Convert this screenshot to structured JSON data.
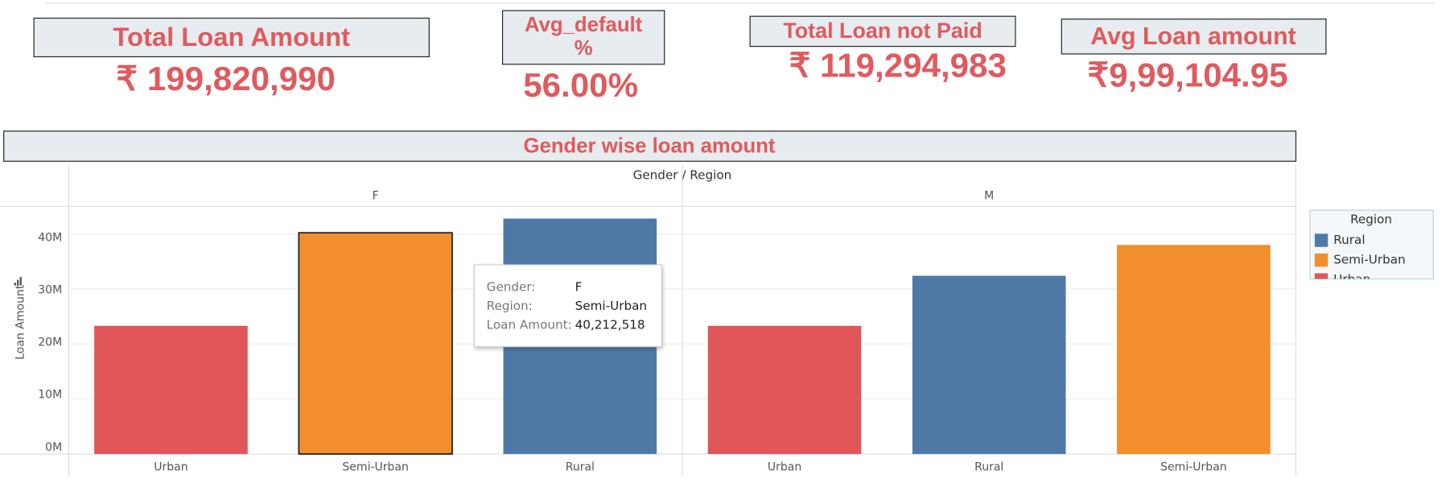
{
  "kpis": [
    {
      "title": "Total Loan Amount",
      "value": "₹ 199,820,990"
    },
    {
      "title": "Avg_default %",
      "value": "56.00%"
    },
    {
      "title": "Total  Loan not Paid",
      "value": "₹ 119,294,983"
    },
    {
      "title": "Avg Loan amount",
      "value": "₹9,99,104.95"
    }
  ],
  "chart_data": {
    "type": "bar",
    "title": "Gender wise loan amount",
    "header": "Gender / Region",
    "ylabel": "Loan Amount",
    "panels": [
      {
        "label": "F",
        "categories": [
          "Urban",
          "Semi-Urban",
          "Rural"
        ],
        "values": [
          23300000,
          40212518,
          42800000
        ]
      },
      {
        "label": "M",
        "categories": [
          "Urban",
          "Rural",
          "Semi-Urban"
        ],
        "values": [
          23300000,
          32400000,
          38000000
        ]
      }
    ],
    "ylim": [
      0,
      45000000
    ],
    "yticks": [
      {
        "value": 0,
        "label": "0M"
      },
      {
        "value": 10000000,
        "label": "10M"
      },
      {
        "value": 20000000,
        "label": "20M"
      },
      {
        "value": 30000000,
        "label": "30M"
      },
      {
        "value": 40000000,
        "label": "40M"
      }
    ],
    "grid": true,
    "legend": {
      "title": "Region",
      "entries": [
        {
          "name": "Rural",
          "color": "#4e79a7"
        },
        {
          "name": "Semi-Urban",
          "color": "#f28e2b"
        },
        {
          "name": "Urban",
          "color": "#e15759"
        }
      ]
    },
    "tooltip": [
      [
        "Gender:",
        "F"
      ],
      [
        "Region:",
        "Semi-Urban"
      ],
      [
        "Loan Amount:",
        "40,212,518"
      ]
    ]
  }
}
